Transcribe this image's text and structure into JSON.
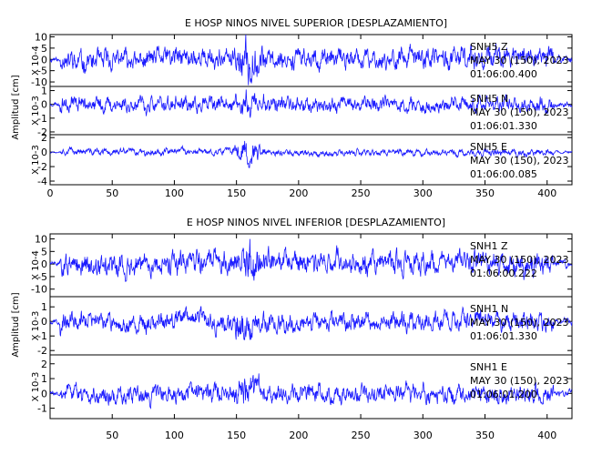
{
  "chart_data": [
    {
      "type": "line",
      "title": "E HOSP NINOS NIVEL SUPERIOR [DESPLAZAMIENTO]",
      "ylabel": "Amplitud [cm]",
      "xlim": [
        0,
        420
      ],
      "x_ticks": [
        "0",
        "50",
        "100",
        "150",
        "200",
        "250",
        "300",
        "350",
        "400"
      ],
      "panels": [
        {
          "component": "Z",
          "scale_label": "X 10-4",
          "ylim": [
            -12,
            11
          ],
          "y_ticks": [
            "10",
            "5",
            "0",
            "-5",
            "-10"
          ],
          "annotation": [
            "SNH5  Z",
            "MAY 30 (150), 2023",
            "01:06:00.400"
          ],
          "series": [
            {
              "amplitude": 4.0,
              "burst_center": 160,
              "burst_gain": 2.2,
              "seed": 11
            }
          ]
        },
        {
          "component": "N",
          "scale_label": "X 10-3",
          "ylim": [
            -2.2,
            1.3
          ],
          "y_ticks": [
            "1",
            "0",
            "-1",
            "-2"
          ],
          "annotation": [
            "SNH5  N",
            "MAY 30 (150), 2023",
            "01:06:01.330"
          ],
          "series": [
            {
              "amplitude": 0.5,
              "burst_center": 160,
              "burst_gain": 2.0,
              "seed": 23
            }
          ]
        },
        {
          "component": "E",
          "scale_label": "X 10-3",
          "ylim": [
            -4.5,
            2.4
          ],
          "y_ticks": [
            "2",
            "0",
            "-2",
            "-4"
          ],
          "annotation": [
            "SNH5  E",
            "MAY 30 (150), 2023",
            "01:06:00.085"
          ],
          "series": [
            {
              "amplitude": 0.4,
              "burst_center": 160,
              "burst_gain": 4.5,
              "seed": 37
            }
          ]
        }
      ]
    },
    {
      "type": "line",
      "title": "E HOSP NINOS NIVEL INFERIOR [DESPLAZAMIENTO]",
      "ylabel": "Amplitud [cm]",
      "xlim": [
        0,
        420
      ],
      "x_ticks": [
        "50",
        "100",
        "150",
        "200",
        "250",
        "300",
        "350",
        "400"
      ],
      "panels": [
        {
          "component": "Z",
          "scale_label": "X 10-4",
          "ylim": [
            -13,
            12
          ],
          "y_ticks": [
            "10",
            "5",
            "0",
            "-5",
            "-10"
          ],
          "annotation": [
            "SNH1  Z",
            "MAY 30 (150), 2023",
            "01:06:00.222"
          ],
          "series": [
            {
              "amplitude": 4.0,
              "burst_center": 160,
              "burst_gain": 2.0,
              "seed": 51
            }
          ]
        },
        {
          "component": "N",
          "scale_label": "X 10-3",
          "ylim": [
            -2.3,
            1.7
          ],
          "y_ticks": [
            "1",
            "0",
            "-1",
            "-2"
          ],
          "annotation": [
            "SNH1  N",
            "MAY 30 (150), 2023",
            "01:06:01.330"
          ],
          "series": [
            {
              "amplitude": 0.55,
              "burst_center": 155,
              "burst_gain": 2.2,
              "seed": 67
            }
          ]
        },
        {
          "component": "E",
          "scale_label": "X 10-3",
          "ylim": [
            -1.7,
            2.6
          ],
          "y_ticks": [
            "2",
            "1",
            "0",
            "-1"
          ],
          "annotation": [
            "SNH1  E",
            "MAY 30 (150), 2023",
            "01:06:01.200"
          ],
          "series": [
            {
              "amplitude": 0.55,
              "burst_center": 160,
              "burst_gain": 2.0,
              "seed": 83
            }
          ]
        }
      ]
    }
  ]
}
